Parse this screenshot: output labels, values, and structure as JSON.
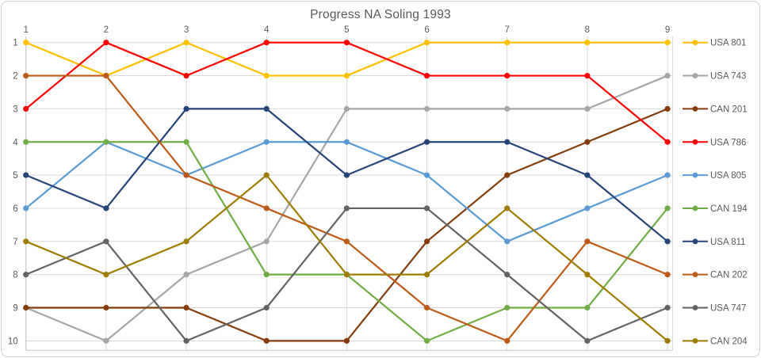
{
  "title": "Progress NA Soling 1993",
  "chart_data": {
    "type": "line",
    "title": "Progress NA Soling 1993",
    "xlabel": "",
    "ylabel": "",
    "x_ticks": [
      "1",
      "2",
      "3",
      "4",
      "5",
      "6",
      "7",
      "8",
      "9"
    ],
    "y_ticks": [
      "1",
      "2",
      "3",
      "4",
      "5",
      "6",
      "7",
      "8",
      "9",
      "10"
    ],
    "x_range": [
      1,
      9
    ],
    "y_range": [
      1,
      10
    ],
    "y_axis_inverted": true,
    "grid": true,
    "legend_position": "right",
    "tick_color": "#595959",
    "gridline_color": "#d9d9d9",
    "axisline_color": "#c6c6c6",
    "series": [
      {
        "name": "USA 801",
        "color": "#FFC000",
        "values": [
          1,
          2,
          1,
          2,
          2,
          1,
          1,
          1,
          1
        ]
      },
      {
        "name": "USA 743",
        "color": "#A6A6A6",
        "values": [
          9,
          10,
          8,
          7,
          3,
          3,
          3,
          3,
          2
        ]
      },
      {
        "name": "CAN 201",
        "color": "#843C0C",
        "values": [
          9,
          9,
          9,
          10,
          10,
          7,
          5,
          4,
          3
        ]
      },
      {
        "name": "USA 786",
        "color": "#FF0000",
        "values": [
          3,
          1,
          2,
          1,
          1,
          2,
          2,
          2,
          4
        ]
      },
      {
        "name": "USA 805",
        "color": "#5B9BD5",
        "values": [
          6,
          4,
          5,
          4,
          4,
          5,
          7,
          6,
          5
        ]
      },
      {
        "name": "CAN 194",
        "color": "#70AD47",
        "values": [
          4,
          4,
          4,
          8,
          8,
          10,
          9,
          9,
          6
        ]
      },
      {
        "name": "USA 811",
        "color": "#264478",
        "values": [
          5,
          6,
          3,
          3,
          5,
          4,
          4,
          5,
          7
        ]
      },
      {
        "name": "CAN 202",
        "color": "#BE5A17",
        "values": [
          2,
          2,
          5,
          6,
          7,
          9,
          10,
          7,
          8
        ]
      },
      {
        "name": "USA 747",
        "color": "#636363",
        "values": [
          8,
          7,
          10,
          9,
          6,
          6,
          8,
          10,
          9
        ]
      },
      {
        "name": "CAN 204",
        "color": "#9E7C00",
        "values": [
          7,
          8,
          7,
          5,
          8,
          8,
          6,
          8,
          10
        ]
      }
    ]
  }
}
